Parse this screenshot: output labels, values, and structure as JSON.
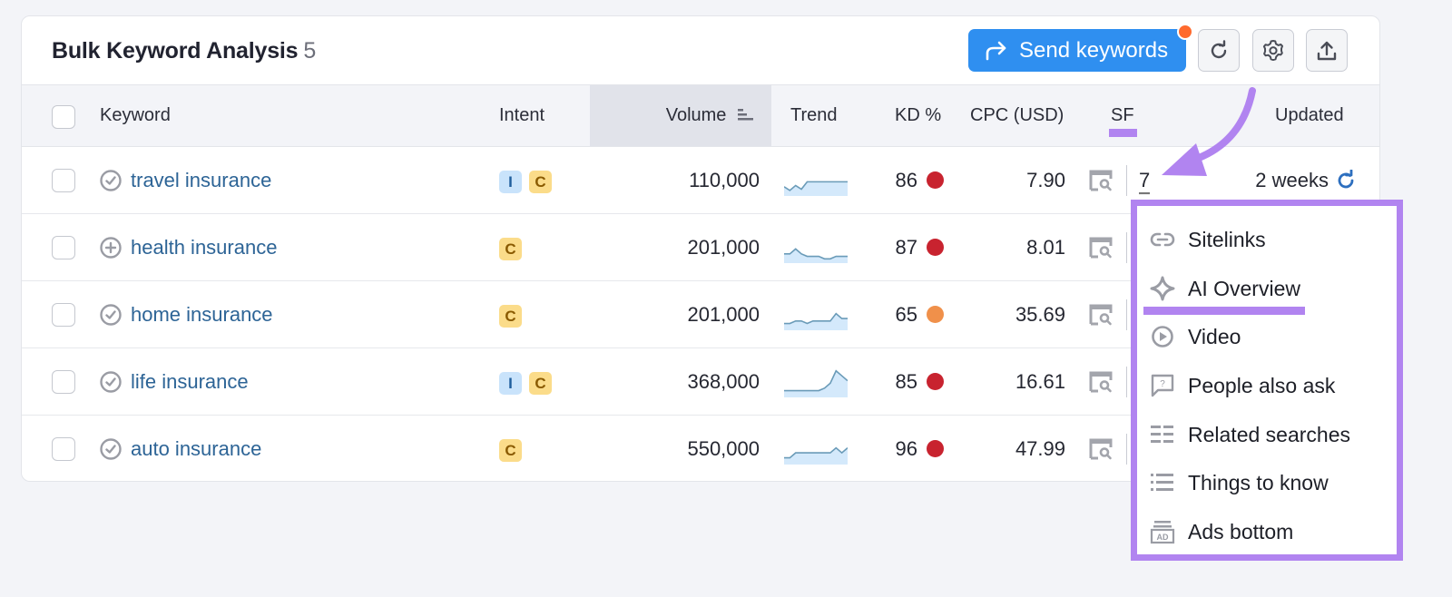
{
  "header": {
    "title": "Bulk Keyword Analysis",
    "count": "5",
    "send_button": "Send keywords",
    "send_button_icon": "share-forward-icon",
    "notification_dot_color": "#ff6a2e",
    "refresh_icon": "refresh-icon",
    "settings_icon": "gear-icon",
    "export_icon": "export-upload-icon"
  },
  "columns": {
    "keyword": "Keyword",
    "intent": "Intent",
    "volume": "Volume",
    "trend": "Trend",
    "kd": "KD %",
    "cpc": "CPC (USD)",
    "sf": "SF",
    "updated": "Updated"
  },
  "rows": [
    {
      "keyword": "travel insurance",
      "status_icon": "check-circle-icon",
      "intents": [
        "I",
        "C"
      ],
      "volume": "110,000",
      "trend": [
        6,
        3,
        7,
        4,
        10,
        10,
        10,
        10,
        10,
        10,
        10,
        10
      ],
      "kd": "86",
      "kd_color": "#c8232f",
      "cpc": "7.90",
      "sf": "7",
      "updated": "2 weeks"
    },
    {
      "keyword": "health insurance",
      "status_icon": "plus-circle-icon",
      "intents": [
        "C"
      ],
      "volume": "201,000",
      "trend": [
        6,
        6,
        10,
        6,
        4,
        4,
        4,
        2,
        2,
        4,
        4,
        4
      ],
      "kd": "87",
      "kd_color": "#c8232f",
      "cpc": "8.01",
      "sf": "",
      "updated": ""
    },
    {
      "keyword": "home insurance",
      "status_icon": "check-circle-icon",
      "intents": [
        "C"
      ],
      "volume": "201,000",
      "trend": [
        4,
        4,
        6,
        6,
        4,
        6,
        6,
        6,
        6,
        12,
        8,
        8
      ],
      "kd": "65",
      "kd_color": "#f0904a",
      "cpc": "35.69",
      "sf": "",
      "updated": ""
    },
    {
      "keyword": "life insurance",
      "status_icon": "check-circle-icon",
      "intents": [
        "I",
        "C"
      ],
      "volume": "368,000",
      "trend": [
        4,
        4,
        4,
        4,
        4,
        4,
        4,
        6,
        10,
        20,
        16,
        12
      ],
      "kd": "85",
      "kd_color": "#c8232f",
      "cpc": "16.61",
      "sf": "",
      "updated": ""
    },
    {
      "keyword": "auto insurance",
      "status_icon": "check-circle-icon",
      "intents": [
        "C"
      ],
      "volume": "550,000",
      "trend": [
        4,
        4,
        8,
        8,
        8,
        8,
        8,
        8,
        8,
        12,
        8,
        12
      ],
      "kd": "96",
      "kd_color": "#c8232f",
      "cpc": "47.99",
      "sf": "",
      "updated": ""
    }
  ],
  "sf_dropdown": {
    "items": [
      {
        "label": "Sitelinks",
        "icon": "link-icon"
      },
      {
        "label": "AI Overview",
        "icon": "ai-sparkle-icon"
      },
      {
        "label": "Video",
        "icon": "play-circle-icon"
      },
      {
        "label": "People also ask",
        "icon": "question-bubble-icon"
      },
      {
        "label": "Related searches",
        "icon": "related-list-icon"
      },
      {
        "label": "Things to know",
        "icon": "bullet-list-icon"
      },
      {
        "label": "Ads bottom",
        "icon": "ad-icon"
      }
    ]
  },
  "colors": {
    "accent_blue": "#2f8ff0",
    "annotation_purple": "#b184f0",
    "link_blue": "#2d6496",
    "kd_red": "#c8232f",
    "kd_orange": "#f0904a"
  }
}
